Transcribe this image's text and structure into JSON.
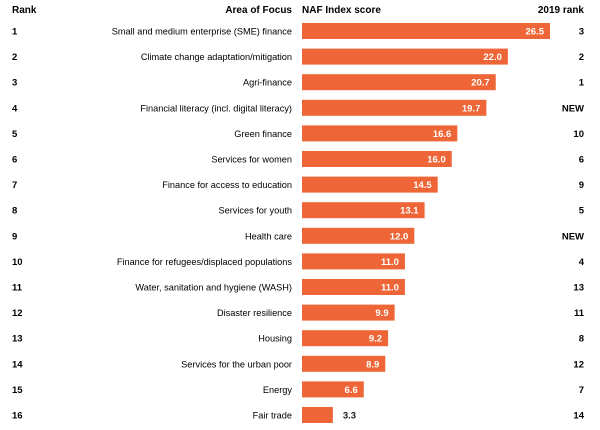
{
  "headers": {
    "rank": "Rank",
    "area": "Area of Focus",
    "score": "NAF Index score",
    "prev_rank": "2019 rank"
  },
  "colors": {
    "bar": "#ee6637",
    "label_inside": "#ffffff",
    "label_outside": "#1a1a1a"
  },
  "chart_data": {
    "type": "bar",
    "orientation": "horizontal",
    "xlim": [
      0,
      28
    ],
    "categories": [
      "Small and medium enterprise (SME) finance",
      "Climate change adaptation/mitigation",
      "Agri-finance",
      "Financial literacy (incl. digital literacy)",
      "Green finance",
      "Services for women",
      "Finance for access to education",
      "Services for youth",
      "Health care",
      "Finance for refugees/displaced populations",
      "Water, sanitation and hygiene (WASH)",
      "Disaster resilience",
      "Housing",
      "Services for the urban poor",
      "Energy",
      "Fair trade"
    ],
    "values": [
      26.5,
      22.0,
      20.7,
      19.7,
      16.6,
      16.0,
      14.5,
      13.1,
      12.0,
      11.0,
      11.0,
      9.9,
      9.2,
      8.9,
      6.6,
      3.3
    ],
    "value_labels": [
      "26.5",
      "22.0",
      "20.7",
      "19.7",
      "16.6",
      "16.0",
      "14.5",
      "13.1",
      "12.0",
      "11.0",
      "11.0",
      "9.9",
      "9.2",
      "8.9",
      "6.6",
      "3.3"
    ],
    "ranks": [
      "1",
      "2",
      "3",
      "4",
      "5",
      "6",
      "7",
      "8",
      "9",
      "10",
      "11",
      "12",
      "13",
      "14",
      "15",
      "16"
    ],
    "rank_2019": [
      "3",
      "2",
      "1",
      "NEW",
      "10",
      "6",
      "9",
      "5",
      "NEW",
      "4",
      "13",
      "11",
      "8",
      "12",
      "7",
      "14"
    ]
  }
}
